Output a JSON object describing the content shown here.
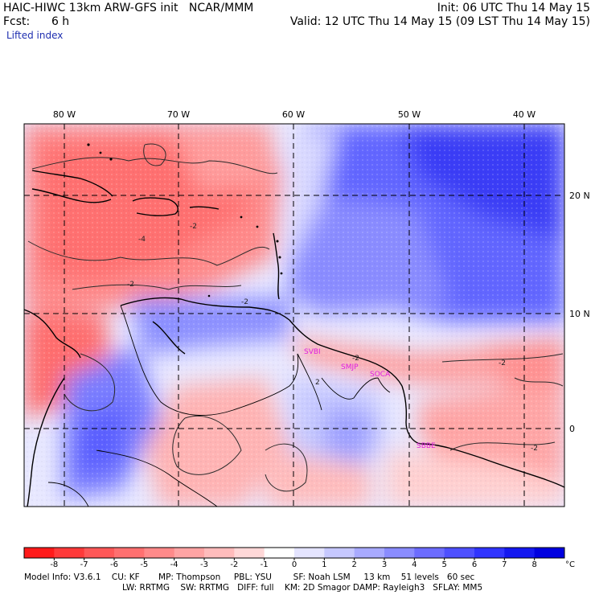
{
  "header": {
    "model_line": "HAIC-HIWC 13km ARW-GFS init   NCAR/MMM",
    "init_line": "Init: 06 UTC Thu 14 May 15",
    "fcst_line": "Fcst:      6 h",
    "valid_line": "Valid: 12 UTC Thu 14 May 15 (09 LST Thu 14 May 15)",
    "field": "Lifted index"
  },
  "map": {
    "lon_labels": [
      "80 W",
      "70 W",
      "60 W",
      "50 W",
      "40 W"
    ],
    "lat_labels": [
      "20 N",
      "10 N",
      "0"
    ],
    "stations": [
      "SVBI",
      "SMJP",
      "SOCA",
      "SBBE"
    ],
    "contour_labels": [
      "-2",
      "-4",
      "-2",
      "-2",
      "-2",
      "2",
      "-2",
      "-2"
    ],
    "station_color": "#e020e0"
  },
  "colorbar": {
    "ticks": [
      "-8",
      "-7",
      "-6",
      "-5",
      "-4",
      "-3",
      "-2",
      "-1",
      "0",
      "1",
      "2",
      "3",
      "4",
      "5",
      "6",
      "7",
      "8"
    ],
    "unit": "°C",
    "colors": [
      "#ff1a1a",
      "#ff3a3a",
      "#ff5858",
      "#ff7070",
      "#ff8a8a",
      "#ffa4a4",
      "#ffbcbc",
      "#ffd8d8",
      "#ffffff",
      "#e4e4ff",
      "#c6c8ff",
      "#a8aaff",
      "#8a8cff",
      "#6c6cff",
      "#4e50ff",
      "#3034ff",
      "#1418f0",
      "#0000e0"
    ]
  },
  "footer": {
    "line1": "Model Info: V3.6.1    CU: KF       MP: Thompson     PBL: YSU        SF: Noah LSM     13 km    51 levels   60 sec",
    "line2": "LW: RRTMG    SW: RRTMG   DIFF: full    KM: 2D Smagor DAMP: Rayleigh3   SFLAY: MM5"
  }
}
